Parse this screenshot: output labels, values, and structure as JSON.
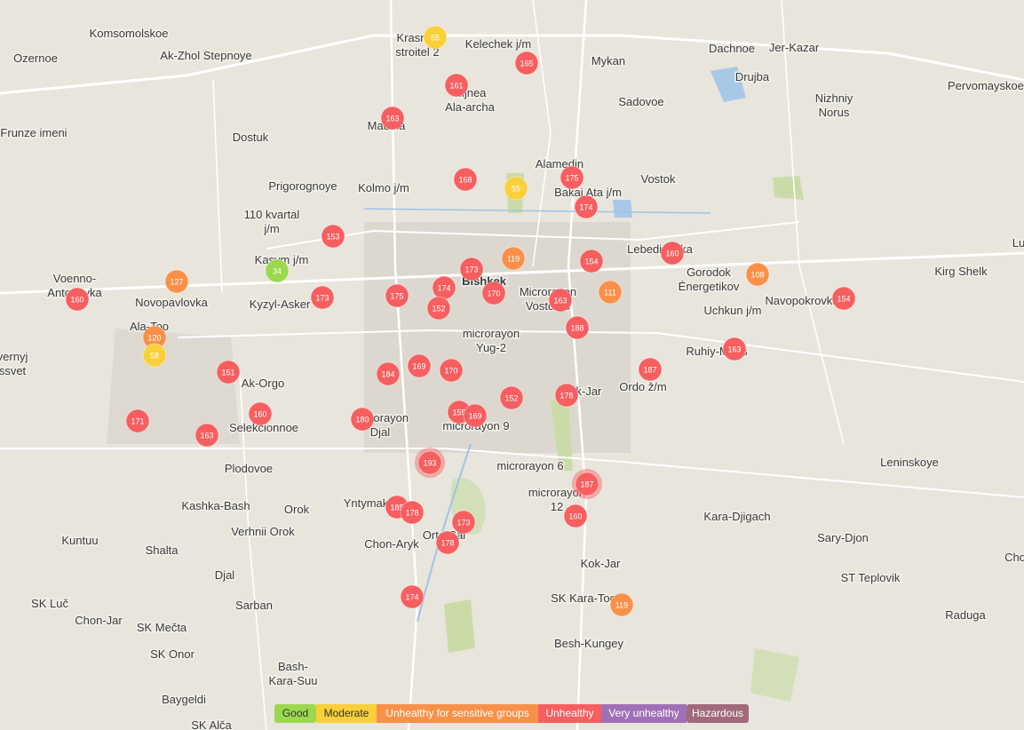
{
  "places": [
    [
      "Komsomolskoe"
    ],
    [
      "Ozernoe"
    ],
    [
      "Ak-Zhol Stepnoye"
    ],
    [
      "Frunze imeni"
    ],
    [
      "Dostuk"
    ],
    [
      "Prigorognoye"
    ],
    [
      "Kolmo j/m"
    ],
    [
      "110 kvartal",
      "j/m"
    ],
    [
      "Kasym j/m"
    ],
    [
      "Voenno-",
      "Antonovka"
    ],
    [
      "Novopavlovka"
    ],
    [
      "Kyzyl-Asker"
    ],
    [
      "Ala-Too"
    ],
    [
      "vernyj",
      "ssvet"
    ],
    [
      "Ak-Orgo"
    ],
    [
      "Selekcionnoe"
    ],
    [
      "Plodovoe"
    ],
    [
      "Kashka-Bash"
    ],
    [
      "Orok"
    ],
    [
      "Verhnii Orok"
    ],
    [
      "Kuntuu"
    ],
    [
      "Shalta"
    ],
    [
      "Djal"
    ],
    [
      "SK Luč"
    ],
    [
      "Chon-Jar"
    ],
    [
      "SK Mečta"
    ],
    [
      "Sarban"
    ],
    [
      "SK Onor"
    ],
    [
      "Bash-",
      "Kara-Suu"
    ],
    [
      "Baygeldi"
    ],
    [
      "SK Alča"
    ],
    [
      "Krasnyy",
      "stroitel 2"
    ],
    [
      "Kelechek j/m"
    ],
    [
      "Nijnea",
      "Ala-archa"
    ],
    [
      "Madina"
    ],
    [
      "Mykan"
    ],
    [
      "Dachnoe"
    ],
    [
      "Jer-Kazar"
    ],
    [
      "Drujba"
    ],
    [
      "Nizhniy",
      "Norus"
    ],
    [
      "Pervomayskoe"
    ],
    [
      "Sadovoe"
    ],
    [
      "Alamedin"
    ],
    [
      "Bakai Ata j/m"
    ],
    [
      "Vostok"
    ],
    [
      "Lebedinovka"
    ],
    [
      "Gorodok",
      "Énergetikov"
    ],
    [
      "Kirg Shelk"
    ],
    [
      "Lu"
    ],
    [
      "Navopokrovka"
    ],
    [
      "Uchkun j/m"
    ],
    [
      "Bishkek"
    ],
    [
      "Microrayon",
      "Vostok-5"
    ],
    [
      "microrayon",
      "Yug-2"
    ],
    [
      "Ruhiy-Mirás"
    ],
    [
      "Ordo ž/m"
    ],
    [
      "Kok-Jar"
    ],
    [
      "microrayon",
      "Djal"
    ],
    [
      "microrayon 9"
    ],
    [
      "microrayon 6"
    ],
    [
      "microrayon",
      "12"
    ],
    [
      "Yntymak"
    ],
    [
      "Orto-Sai"
    ],
    [
      "Chon-Aryk"
    ],
    [
      "Kara-Djigach"
    ],
    [
      "Leninskoye"
    ],
    [
      "Sary-Djon"
    ],
    [
      "Cho"
    ],
    [
      "ST Teplovik"
    ],
    [
      "Kok-Jar"
    ],
    [
      "SK Kara-Too"
    ],
    [
      "Raduga"
    ],
    [
      "Besh-Kungey"
    ]
  ],
  "stations": [
    55,
    165,
    161,
    163,
    168,
    55,
    175,
    174,
    153,
    119,
    154,
    160,
    108,
    34,
    127,
    173,
    174,
    175,
    170,
    152,
    111,
    163,
    154,
    160,
    173,
    188,
    120,
    58,
    163,
    187,
    151,
    169,
    170,
    184,
    152,
    178,
    160,
    180,
    155,
    169,
    171,
    163,
    193,
    187,
    160,
    185,
    178,
    173,
    178,
    174,
    119
  ],
  "legend": [
    {
      "label": "Good",
      "color": "#9cd84e"
    },
    {
      "label": "Moderate",
      "color": "#facf39"
    },
    {
      "label": "Unhealthy for sensitive groups",
      "color": "#f99049"
    },
    {
      "label": "Unhealthy",
      "color": "#f65e5f"
    },
    {
      "label": "Very unhealthy",
      "color": "#a070b6"
    },
    {
      "label": "Hazardous",
      "color": "#a06a7b"
    }
  ]
}
